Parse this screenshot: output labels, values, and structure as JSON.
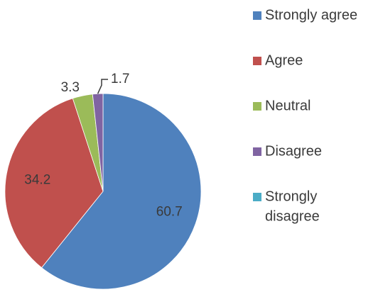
{
  "chart_data": {
    "type": "pie",
    "categories": [
      "Strongly agree",
      "Agree",
      "Neutral",
      "Disagree",
      "Strongly disagree"
    ],
    "values": [
      60.7,
      34.2,
      3.3,
      1.7,
      0
    ],
    "data_labels": [
      "60.7",
      "34.2",
      "3.3",
      "1.7",
      ""
    ],
    "colors": [
      "#4f81bd",
      "#c0504d",
      "#9bbb59",
      "#8064a2",
      "#4bacc6"
    ],
    "legend": {
      "position": "right",
      "entries": [
        {
          "label_lines": [
            "Strongly agree"
          ],
          "color": "#4f81bd"
        },
        {
          "label_lines": [
            "Agree"
          ],
          "color": "#c0504d"
        },
        {
          "label_lines": [
            "Neutral"
          ],
          "color": "#9bbb59"
        },
        {
          "label_lines": [
            "Disagree"
          ],
          "color": "#8064a2"
        },
        {
          "label_lines": [
            "Strongly",
            "disagree"
          ],
          "color": "#4bacc6"
        }
      ]
    },
    "title": "",
    "start_angle_deg": 0,
    "direction": "clockwise"
  }
}
